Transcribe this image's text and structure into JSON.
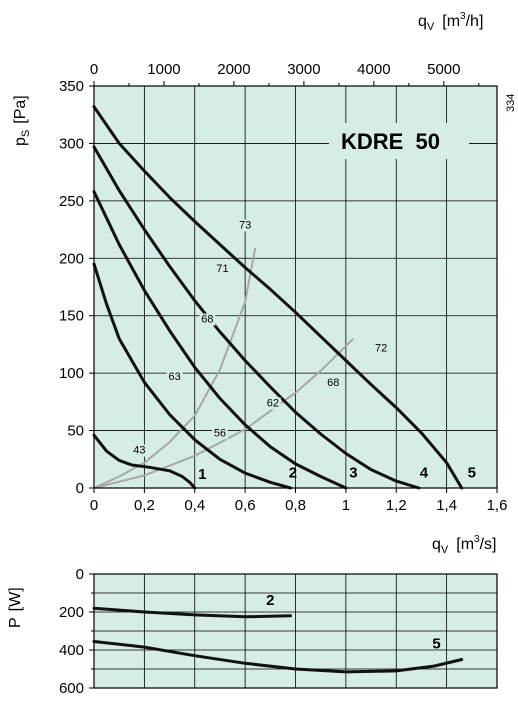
{
  "chart_data": [
    {
      "type": "line",
      "title": "KDRE  50",
      "side_note": "334",
      "x": {
        "label_main": "q",
        "label_sub": "V",
        "label_unit_pre": "[m",
        "label_unit_sup": "3",
        "label_unit_post": "/s]",
        "lim": [
          0,
          1.6
        ],
        "ticks": [
          0,
          0.2,
          0.4,
          0.6,
          0.8,
          1,
          1.2,
          1.4,
          1.6
        ],
        "tick_labels": [
          "0",
          "0,2",
          "0,4",
          "0,6",
          "0,8",
          "1",
          "1,2",
          "1,4",
          "1,6"
        ]
      },
      "x_top": {
        "label_main": "q",
        "label_sub": "V",
        "label_unit_pre": "[m",
        "label_unit_sup": "3",
        "label_unit_post": "/h]",
        "lim": [
          0,
          5760
        ],
        "ticks": [
          0,
          1000,
          2000,
          3000,
          4000,
          5000
        ],
        "tick_labels": [
          "0",
          "1000",
          "2000",
          "3000",
          "4000",
          "5000"
        ]
      },
      "y": {
        "label_main": "p",
        "label_sub": "S",
        "label_unit": "[Pa]",
        "lim": [
          0,
          350
        ],
        "ticks": [
          0,
          50,
          100,
          150,
          200,
          250,
          300,
          350
        ],
        "tick_labels": [
          "0",
          "50",
          "100",
          "150",
          "200",
          "250",
          "300",
          "350"
        ]
      },
      "grid": true,
      "background": "#d6ece7",
      "fan_curves": [
        {
          "label": "1",
          "label_at": [
            0.43,
            8
          ],
          "points": [
            [
              0,
              46
            ],
            [
              0.05,
              32
            ],
            [
              0.1,
              24
            ],
            [
              0.15,
              20
            ],
            [
              0.22,
              18
            ],
            [
              0.3,
              15
            ],
            [
              0.35,
              10
            ],
            [
              0.38,
              5
            ],
            [
              0.4,
              0
            ]
          ]
        },
        {
          "label": "2",
          "label_at": [
            0.79,
            9
          ],
          "points": [
            [
              0,
              195
            ],
            [
              0.05,
              160
            ],
            [
              0.1,
              130
            ],
            [
              0.2,
              92
            ],
            [
              0.3,
              64
            ],
            [
              0.4,
              42
            ],
            [
              0.5,
              25
            ],
            [
              0.6,
              13
            ],
            [
              0.7,
              5
            ],
            [
              0.78,
              0
            ]
          ]
        },
        {
          "label": "3",
          "label_at": [
            1.03,
            9
          ],
          "points": [
            [
              0,
              258
            ],
            [
              0.1,
              212
            ],
            [
              0.2,
              172
            ],
            [
              0.3,
              137
            ],
            [
              0.4,
              105
            ],
            [
              0.5,
              78
            ],
            [
              0.6,
              55
            ],
            [
              0.7,
              36
            ],
            [
              0.8,
              21
            ],
            [
              0.9,
              10
            ],
            [
              1.0,
              0
            ]
          ]
        },
        {
          "label": "4",
          "label_at": [
            1.31,
            9
          ],
          "points": [
            [
              0,
              297
            ],
            [
              0.1,
              259
            ],
            [
              0.2,
              225
            ],
            [
              0.3,
              193
            ],
            [
              0.4,
              163
            ],
            [
              0.5,
              136
            ],
            [
              0.6,
              111
            ],
            [
              0.7,
              88
            ],
            [
              0.8,
              66
            ],
            [
              0.9,
              47
            ],
            [
              1.0,
              30
            ],
            [
              1.1,
              16
            ],
            [
              1.2,
              6
            ],
            [
              1.29,
              0
            ]
          ]
        },
        {
          "label": "5",
          "label_at": [
            1.5,
            9
          ],
          "points": [
            [
              0,
              332
            ],
            [
              0.1,
              300
            ],
            [
              0.2,
              276
            ],
            [
              0.3,
              253
            ],
            [
              0.4,
              232
            ],
            [
              0.5,
              212
            ],
            [
              0.6,
              192
            ],
            [
              0.7,
              173
            ],
            [
              0.8,
              153
            ],
            [
              0.9,
              132
            ],
            [
              1.0,
              111
            ],
            [
              1.1,
              90
            ],
            [
              1.2,
              70
            ],
            [
              1.3,
              48
            ],
            [
              1.4,
              22
            ],
            [
              1.46,
              0
            ]
          ]
        }
      ],
      "system_curves": [
        {
          "points": [
            [
              0,
              0
            ],
            [
              0.1,
              10
            ],
            [
              0.2,
              22
            ],
            [
              0.3,
              40
            ],
            [
              0.4,
              63
            ],
            [
              0.5,
              103
            ],
            [
              0.6,
              162
            ],
            [
              0.64,
              209
            ]
          ]
        },
        {
          "points": [
            [
              0,
              0
            ],
            [
              0.2,
              11
            ],
            [
              0.4,
              28
            ],
            [
              0.6,
              51
            ],
            [
              0.8,
              83
            ],
            [
              0.9,
              102
            ],
            [
              1.03,
              130
            ]
          ]
        }
      ],
      "efficiency_labels": [
        {
          "text": "43",
          "at": [
            0.18,
            30
          ]
        },
        {
          "text": "63",
          "at": [
            0.32,
            94
          ]
        },
        {
          "text": "68",
          "at": [
            0.45,
            144
          ]
        },
        {
          "text": "71",
          "at": [
            0.51,
            188
          ]
        },
        {
          "text": "73",
          "at": [
            0.6,
            226
          ]
        },
        {
          "text": "56",
          "at": [
            0.5,
            45
          ]
        },
        {
          "text": "62",
          "at": [
            0.71,
            71
          ]
        },
        {
          "text": "68",
          "at": [
            0.95,
            89
          ]
        },
        {
          "text": "72",
          "at": [
            1.14,
            119
          ]
        }
      ]
    },
    {
      "type": "line",
      "y": {
        "label_main": "P",
        "label_unit": "[W]",
        "lim": [
          0,
          600
        ],
        "inverted": true,
        "ticks": [
          0,
          200,
          400,
          600
        ],
        "tick_labels": [
          "0",
          "200",
          "400",
          "600"
        ]
      },
      "x": {
        "lim": [
          0,
          1.6
        ],
        "ticks": [
          0,
          0.2,
          0.4,
          0.6,
          0.8,
          1,
          1.2,
          1.4,
          1.6
        ]
      },
      "grid": true,
      "background": "#d6ece7",
      "series": [
        {
          "name": "2",
          "label_at": [
            0.7,
            162
          ],
          "points": [
            [
              0,
              180
            ],
            [
              0.2,
              200
            ],
            [
              0.4,
              215
            ],
            [
              0.6,
              225
            ],
            [
              0.78,
              220
            ]
          ]
        },
        {
          "name": "5",
          "label_at": [
            1.36,
            393
          ],
          "points": [
            [
              0,
              355
            ],
            [
              0.2,
              385
            ],
            [
              0.4,
              430
            ],
            [
              0.6,
              470
            ],
            [
              0.8,
              500
            ],
            [
              1.0,
              515
            ],
            [
              1.2,
              510
            ],
            [
              1.35,
              485
            ],
            [
              1.46,
              450
            ]
          ]
        }
      ]
    }
  ]
}
